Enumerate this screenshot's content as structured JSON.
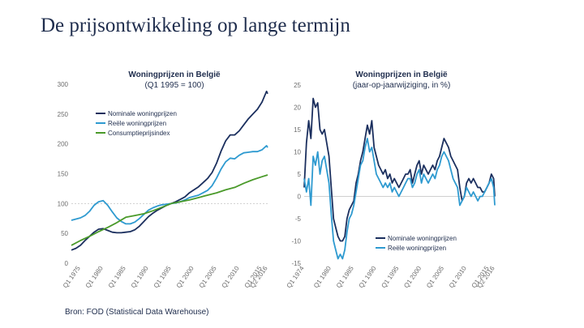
{
  "slide": {
    "title": "De prijsontwikkeling op lange termijn",
    "source": "Bron: FOD (Statistical Data Warehouse)"
  },
  "colors": {
    "nominal": "#1b2f5e",
    "real": "#2e9ad0",
    "cpi": "#4a9a2a",
    "grid": "#cfcfcf",
    "title": "#1f2d4d"
  },
  "chart_data": [
    {
      "type": "line",
      "title": "Woningprijzen in België",
      "subtitle": "(Q1 1995 = 100)",
      "xlabel": "",
      "ylabel": "",
      "ylim": [
        0,
        300
      ],
      "yticks": [
        "0",
        "50",
        "100",
        "150",
        "200",
        "250",
        "300"
      ],
      "xlim": [
        1973,
        2016.25
      ],
      "xticks": [
        {
          "label": "Q1 1975",
          "x": 1975
        },
        {
          "label": "Q1 1980",
          "x": 1980
        },
        {
          "label": "Q1 1985",
          "x": 1985
        },
        {
          "label": "Q1 1990",
          "x": 1990
        },
        {
          "label": "Q1 1995",
          "x": 1995
        },
        {
          "label": "Q1 2000",
          "x": 2000
        },
        {
          "label": "Q1 2005",
          "x": 2005
        },
        {
          "label": "Q1 2010",
          "x": 2010
        },
        {
          "label": "Q1 2015",
          "x": 2015
        },
        {
          "label": "Q2 2016",
          "x": 2016.25
        }
      ],
      "reference_line": 100,
      "legend_position": "top-left",
      "series": [
        {
          "name": "Nominale woningprijzen",
          "color": "#1b2f5e",
          "x": [
            1973,
            1974,
            1975,
            1976,
            1977,
            1978,
            1979,
            1980,
            1981,
            1982,
            1983,
            1984,
            1985,
            1986,
            1987,
            1988,
            1989,
            1990,
            1991,
            1992,
            1993,
            1994,
            1995,
            1996,
            1997,
            1998,
            1999,
            2000,
            2001,
            2002,
            2003,
            2004,
            2005,
            2006,
            2007,
            2008,
            2009,
            2010,
            2011,
            2012,
            2013,
            2014,
            2015,
            2016,
            2016.25
          ],
          "y": [
            22,
            25,
            30,
            38,
            45,
            52,
            57,
            58,
            55,
            52,
            51,
            51,
            52,
            53,
            56,
            62,
            70,
            78,
            84,
            89,
            93,
            97,
            100,
            103,
            107,
            111,
            118,
            123,
            128,
            135,
            142,
            152,
            168,
            188,
            205,
            215,
            215,
            222,
            232,
            242,
            250,
            258,
            270,
            288,
            284
          ]
        },
        {
          "name": "Reële woningprijzen",
          "color": "#2e9ad0",
          "x": [
            1973,
            1974,
            1975,
            1976,
            1977,
            1978,
            1979,
            1980,
            1981,
            1982,
            1983,
            1984,
            1985,
            1986,
            1987,
            1988,
            1989,
            1990,
            1991,
            1992,
            1993,
            1994,
            1995,
            1996,
            1997,
            1998,
            1999,
            2000,
            2001,
            2002,
            2003,
            2004,
            2005,
            2006,
            2007,
            2008,
            2009,
            2010,
            2011,
            2012,
            2013,
            2014,
            2015,
            2016,
            2016.25
          ],
          "y": [
            72,
            74,
            76,
            80,
            87,
            97,
            103,
            105,
            97,
            86,
            76,
            70,
            66,
            66,
            69,
            75,
            82,
            89,
            93,
            96,
            98,
            99,
            100,
            101,
            103,
            106,
            110,
            112,
            114,
            118,
            122,
            130,
            143,
            158,
            170,
            176,
            175,
            181,
            185,
            186,
            187,
            187,
            190,
            197,
            194
          ]
        },
        {
          "name": "Consumptieprijsindex",
          "color": "#4a9a2a",
          "x": [
            1973,
            1975,
            1977,
            1979,
            1981,
            1983,
            1985,
            1987,
            1989,
            1991,
            1993,
            1995,
            1997,
            1999,
            2001,
            2003,
            2005,
            2007,
            2009,
            2011,
            2013,
            2015,
            2016.25
          ],
          "y": [
            30,
            38,
            45,
            53,
            60,
            68,
            77,
            80,
            83,
            88,
            94,
            100,
            103,
            106,
            110,
            114,
            118,
            123,
            127,
            134,
            140,
            145,
            148
          ]
        }
      ]
    },
    {
      "type": "line",
      "title": "Woningprijzen in België",
      "subtitle": "(jaar-op-jaarwijziging, in %)",
      "xlabel": "",
      "ylabel": "",
      "ylim": [
        -15,
        25
      ],
      "yticks": [
        "-15",
        "-10",
        "-5",
        "0",
        "5",
        "10",
        "15",
        "20",
        "25"
      ],
      "xlim": [
        1974,
        2016.25
      ],
      "xticks": [
        {
          "label": "Q1 1974",
          "x": 1974
        },
        {
          "label": "Q1 1980",
          "x": 1980
        },
        {
          "label": "Q1 1985",
          "x": 1985
        },
        {
          "label": "Q1 1990",
          "x": 1990
        },
        {
          "label": "Q1 1995",
          "x": 1995
        },
        {
          "label": "Q1 2000",
          "x": 2000
        },
        {
          "label": "Q1 2005",
          "x": 2005
        },
        {
          "label": "Q1 2010",
          "x": 2010
        },
        {
          "label": "Q1 2015",
          "x": 2015
        },
        {
          "label": "Q2 2016",
          "x": 2016.25
        }
      ],
      "legend_position": "bottom-center",
      "series": [
        {
          "name": "Nominale woningprijzen",
          "color": "#1b2f5e",
          "x": [
            1974,
            1974.5,
            1975,
            1975.5,
            1976,
            1976.5,
            1977,
            1977.5,
            1978,
            1978.5,
            1979,
            1979.5,
            1980,
            1980.5,
            1981,
            1981.5,
            1982,
            1982.5,
            1983,
            1983.5,
            1984,
            1984.5,
            1985,
            1985.5,
            1986,
            1986.5,
            1987,
            1987.5,
            1988,
            1988.5,
            1989,
            1989.5,
            1990,
            1990.5,
            1991,
            1991.5,
            1992,
            1992.5,
            1993,
            1993.5,
            1994,
            1994.5,
            1995,
            1995.5,
            1996,
            1996.5,
            1997,
            1997.5,
            1998,
            1998.5,
            1999,
            1999.5,
            2000,
            2000.5,
            2001,
            2001.5,
            2002,
            2002.5,
            2003,
            2003.5,
            2004,
            2004.5,
            2005,
            2005.5,
            2006,
            2006.5,
            2007,
            2007.5,
            2008,
            2008.5,
            2009,
            2009.5,
            2010,
            2010.5,
            2011,
            2011.5,
            2012,
            2012.5,
            2013,
            2013.5,
            2014,
            2014.5,
            2015,
            2015.5,
            2016,
            2016.25
          ],
          "y": [
            2,
            12,
            17,
            13,
            22,
            20,
            21,
            15,
            14,
            15,
            12,
            9,
            2,
            -5,
            -7,
            -9,
            -10,
            -10,
            -9,
            -5,
            -3,
            -2,
            -1,
            3,
            5,
            8,
            10,
            13,
            16,
            14,
            17,
            11,
            9,
            7,
            6,
            5,
            6,
            4,
            5,
            3,
            4,
            3,
            2,
            3,
            4,
            5,
            5,
            6,
            3,
            5,
            7,
            8,
            5,
            7,
            6,
            5,
            6,
            7,
            6,
            8,
            9,
            11,
            13,
            12,
            11,
            9,
            8,
            7,
            6,
            2,
            -1,
            0,
            3,
            4,
            3,
            4,
            3,
            2,
            2,
            1,
            1,
            2,
            3,
            5,
            4,
            0
          ]
        },
        {
          "name": "Reële woningprijzen",
          "color": "#2e9ad0",
          "x": [
            1974,
            1974.5,
            1975,
            1975.5,
            1976,
            1976.5,
            1977,
            1977.5,
            1978,
            1978.5,
            1979,
            1979.5,
            1980,
            1980.5,
            1981,
            1981.5,
            1982,
            1982.5,
            1983,
            1983.5,
            1984,
            1984.5,
            1985,
            1985.5,
            1986,
            1986.5,
            1987,
            1987.5,
            1988,
            1988.5,
            1989,
            1989.5,
            1990,
            1990.5,
            1991,
            1991.5,
            1992,
            1992.5,
            1993,
            1993.5,
            1994,
            1994.5,
            1995,
            1995.5,
            1996,
            1996.5,
            1997,
            1997.5,
            1998,
            1998.5,
            1999,
            1999.5,
            2000,
            2000.5,
            2001,
            2001.5,
            2002,
            2002.5,
            2003,
            2003.5,
            2004,
            2004.5,
            2005,
            2005.5,
            2006,
            2006.5,
            2007,
            2007.5,
            2008,
            2008.5,
            2009,
            2009.5,
            2010,
            2010.5,
            2011,
            2011.5,
            2012,
            2012.5,
            2013,
            2013.5,
            2014,
            2014.5,
            2015,
            2015.5,
            2016,
            2016.25
          ],
          "y": [
            4,
            1,
            4,
            -2,
            9,
            7,
            10,
            5,
            8,
            9,
            6,
            3,
            -4,
            -10,
            -12,
            -14,
            -13,
            -14,
            -12,
            -8,
            -5,
            -4,
            -2,
            1,
            4,
            7,
            8,
            11,
            13,
            10,
            11,
            8,
            5,
            4,
            3,
            2,
            3,
            2,
            3,
            1,
            2,
            1,
            0,
            1,
            2,
            3,
            4,
            4,
            2,
            3,
            5,
            6,
            3,
            5,
            4,
            3,
            4,
            5,
            4,
            6,
            7,
            9,
            10,
            9,
            8,
            6,
            4,
            3,
            2,
            -2,
            -1,
            0,
            2,
            1,
            0,
            1,
            0,
            -1,
            0,
            0,
            1,
            2,
            3,
            4,
            2,
            -2
          ]
        }
      ]
    }
  ]
}
